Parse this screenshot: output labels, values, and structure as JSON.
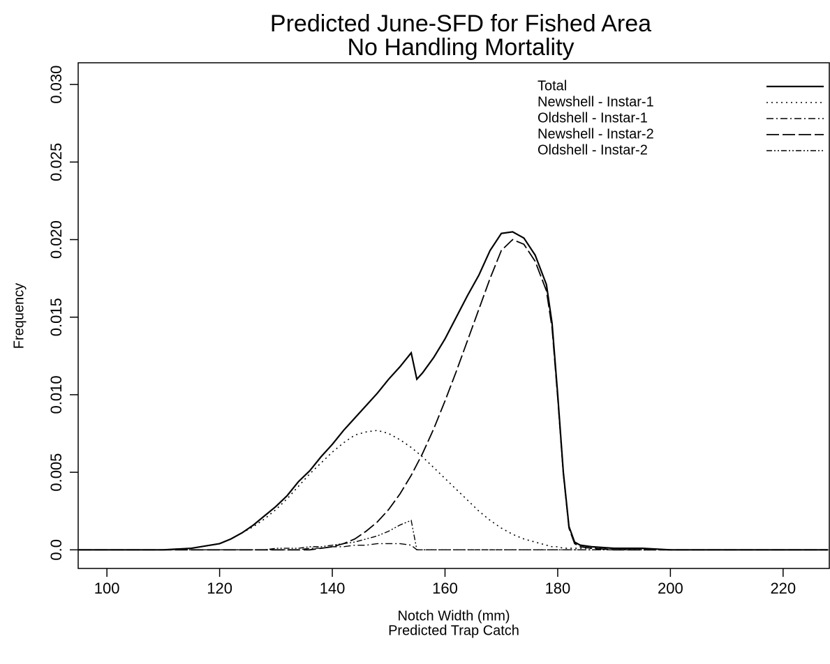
{
  "chart_data": {
    "type": "line",
    "title": "Predicted June-SFD for Fished Area",
    "subtitle": "No Handling Mortality",
    "xlabel": "Notch Width (mm)",
    "xlabel_sub": "Predicted Trap Catch",
    "ylabel": "Frequency",
    "legend": "upper right",
    "xlim": [
      94.9,
      228.2
    ],
    "ylim": [
      -0.0012,
      0.0314
    ],
    "xticks": [
      100,
      120,
      140,
      160,
      180,
      200,
      220
    ],
    "yticks": [
      {
        "value": 0,
        "label": "0.0"
      },
      0.005,
      {
        "value": 0.01,
        "label": "0.010"
      },
      0.015,
      {
        "value": 0.02,
        "label": "0.020"
      },
      0.025,
      {
        "value": 0.03,
        "label": "0.030"
      }
    ],
    "x": [
      95,
      100,
      105,
      110,
      115,
      120,
      122,
      124,
      126,
      128,
      130,
      132,
      134,
      136,
      138,
      140,
      142,
      144,
      146,
      148,
      150,
      152,
      154,
      155,
      156,
      158,
      160,
      162,
      164,
      166,
      168,
      170,
      172,
      174,
      176,
      178,
      179,
      180,
      181,
      182,
      183,
      184,
      186,
      190,
      195,
      200,
      210,
      220,
      228
    ],
    "series": [
      {
        "name": "Total",
        "color": "#000000",
        "dash": "solid",
        "width": 2.2,
        "values": [
          0,
          0,
          0,
          0,
          0.0001,
          0.0004,
          0.0007,
          0.0011,
          0.0016,
          0.0022,
          0.0028,
          0.0035,
          0.0044,
          0.0051,
          0.006,
          0.0068,
          0.0077,
          0.0085,
          0.0093,
          0.0101,
          0.011,
          0.0118,
          0.0127,
          0.011,
          0.0114,
          0.0124,
          0.0136,
          0.015,
          0.0164,
          0.0177,
          0.0193,
          0.0204,
          0.0205,
          0.0201,
          0.019,
          0.0171,
          0.0146,
          0.01,
          0.005,
          0.0015,
          0.0005,
          0.0003,
          0.0002,
          0.0001,
          0.0001,
          0,
          0,
          0,
          0
        ]
      },
      {
        "name": "Newshell - Instar-1",
        "color": "#000000",
        "dash": "2,5",
        "width": 1.6,
        "values": [
          0,
          0,
          0,
          0,
          0.0001,
          0.0004,
          0.0007,
          0.0011,
          0.0015,
          0.002,
          0.0026,
          0.0033,
          0.0041,
          0.0049,
          0.0056,
          0.0063,
          0.0069,
          0.0074,
          0.0076,
          0.0077,
          0.0075,
          0.0071,
          0.0066,
          0.0063,
          0.006,
          0.0053,
          0.0046,
          0.0039,
          0.0032,
          0.0025,
          0.0019,
          0.0014,
          0.001,
          0.0007,
          0.0005,
          0.0003,
          0.0002,
          0.0002,
          0.0001,
          0.0001,
          0.0001,
          0.0001,
          0.0001,
          0.0001,
          0,
          0,
          0,
          0,
          0
        ]
      },
      {
        "name": "Oldshell - Instar-1",
        "color": "#000000",
        "dash": "10,4,2,4",
        "width": 1.4,
        "values": [
          0,
          0,
          0,
          0,
          0,
          0,
          0,
          0,
          0,
          0,
          0,
          0,
          0,
          0.0001,
          0.0001,
          0.0002,
          0.0002,
          0.0003,
          0.0003,
          0.0004,
          0.0004,
          0.0004,
          0.0003,
          0,
          0,
          0,
          0,
          0,
          0,
          0,
          0,
          0,
          0,
          0,
          0,
          0,
          0,
          0,
          0,
          0,
          0,
          0,
          0,
          0,
          0,
          0,
          0,
          0,
          0
        ]
      },
      {
        "name": "Newshell - Instar-2",
        "color": "#000000",
        "dash": "18,5",
        "width": 1.8,
        "values": [
          0,
          0,
          0,
          0,
          0,
          0,
          0,
          0,
          0,
          0,
          0,
          0,
          0,
          0,
          0.0001,
          0.0002,
          0.0004,
          0.0007,
          0.0012,
          0.0018,
          0.0026,
          0.0036,
          0.0048,
          0.0055,
          0.0062,
          0.0078,
          0.0096,
          0.0115,
          0.0135,
          0.0155,
          0.0175,
          0.0193,
          0.02,
          0.0197,
          0.0186,
          0.0167,
          0.0143,
          0.0098,
          0.0049,
          0.0014,
          0.0004,
          0.0002,
          0.0001,
          0,
          0,
          0,
          0,
          0,
          0
        ]
      },
      {
        "name": "Oldshell - Instar-2",
        "color": "#000000",
        "dash": "8,3,2,3,2,3",
        "width": 1.4,
        "values": [
          0,
          0,
          0,
          0,
          0,
          0,
          0,
          0,
          0,
          0,
          0.0001,
          0.0001,
          0.0001,
          0.0002,
          0.0002,
          0.0003,
          0.0004,
          0.0005,
          0.0007,
          0.0009,
          0.0012,
          0.0016,
          0.0019,
          0,
          0,
          0,
          0,
          0,
          0,
          0,
          0,
          0,
          0,
          0,
          0,
          0,
          0,
          0,
          0,
          0,
          0,
          0,
          0,
          0,
          0,
          0,
          0,
          0,
          0
        ]
      }
    ]
  }
}
